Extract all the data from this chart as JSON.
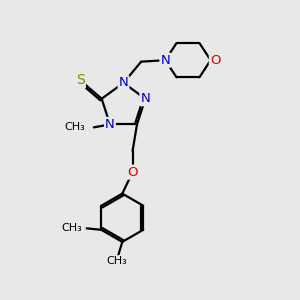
{
  "bg_color": "#e8e8e8",
  "bond_color": "#000000",
  "N_color": "#0000cc",
  "O_color": "#dd0000",
  "S_color": "#888800",
  "line_width": 1.6,
  "font_size": 9.5,
  "fig_size": [
    3.0,
    3.0
  ],
  "dpi": 100,
  "xlim": [
    0,
    10
  ],
  "ylim": [
    0,
    10
  ]
}
